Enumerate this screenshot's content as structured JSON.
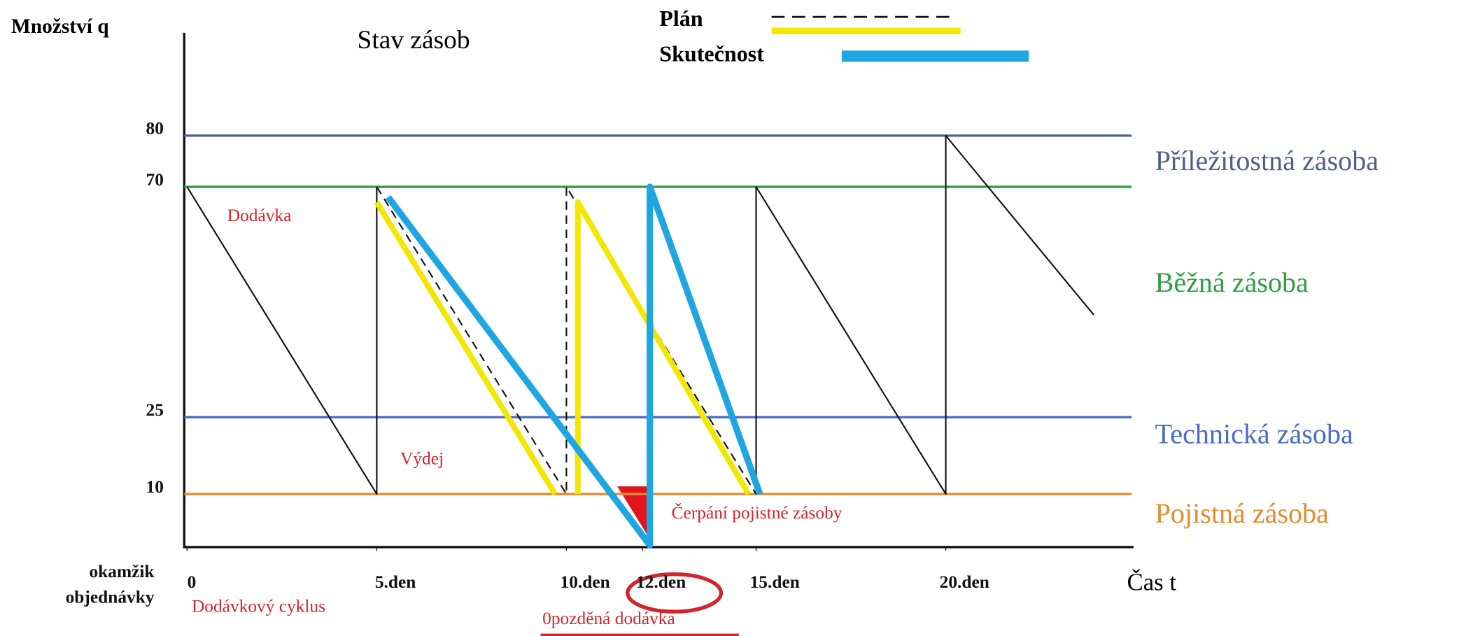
{
  "chart_data": {
    "type": "line",
    "title": "Stav zásob",
    "ylabel": "Množství q",
    "xlabel": "Čas t",
    "xlim": [
      0,
      24.9
    ],
    "ylim": [
      0,
      80
    ],
    "yticks": [
      80,
      70,
      25,
      10
    ],
    "grid": true,
    "grid_colors": [
      "#4f5f88",
      "#2f9e44",
      "#4a6cc2",
      "#e38b2f"
    ],
    "xticks": [
      0,
      {
        "value": 5,
        "label": "5.den"
      },
      {
        "value": 10,
        "label": "10.den"
      },
      {
        "value": 12,
        "label": "12.den"
      },
      {
        "value": 15,
        "label": "15.den"
      },
      {
        "value": 20,
        "label": "20.den"
      }
    ],
    "zones": [
      {
        "label": "Příležitostná zásoba",
        "color": "#4f5f88"
      },
      {
        "label": "Běžná zásoba",
        "color": "#2f9e44"
      },
      {
        "label": "Technická zásoba",
        "color": "#4a6cc2"
      },
      {
        "label": "Pojistná zásoba",
        "color": "#e38b2f"
      }
    ],
    "series": [
      {
        "color": "#111111",
        "x": [
          0,
          5,
          5,
          null,
          15,
          15,
          20,
          20,
          23.9
        ],
        "values": [
          70,
          10,
          70,
          null,
          10,
          70,
          10,
          80,
          45
        ]
      },
      {
        "color": "#111111",
        "dashed": true,
        "x": [
          5,
          10,
          10,
          15
        ],
        "values": [
          70,
          10,
          70,
          10
        ]
      },
      {
        "name": "Plán",
        "color": "#f3e600",
        "x": [
          5,
          9.7,
          null,
          10.3,
          10.3,
          14.8
        ],
        "values": [
          67,
          10,
          null,
          10,
          67,
          10
        ]
      },
      {
        "name": "Skutečnost",
        "color": "#1fa6e0",
        "x": [
          5.3,
          12.2,
          12.2,
          15.1
        ],
        "values": [
          68,
          0,
          70,
          10
        ]
      }
    ],
    "annotations": {
      "delivery": "Dodávka",
      "issue": "Výdej",
      "safety_draw": "Čerpání pojistné zásoby",
      "cycle": "Dodávkový cyklus",
      "late": "0pozděná dodávka",
      "order_point": [
        "okamžik",
        "objednávky"
      ]
    }
  }
}
